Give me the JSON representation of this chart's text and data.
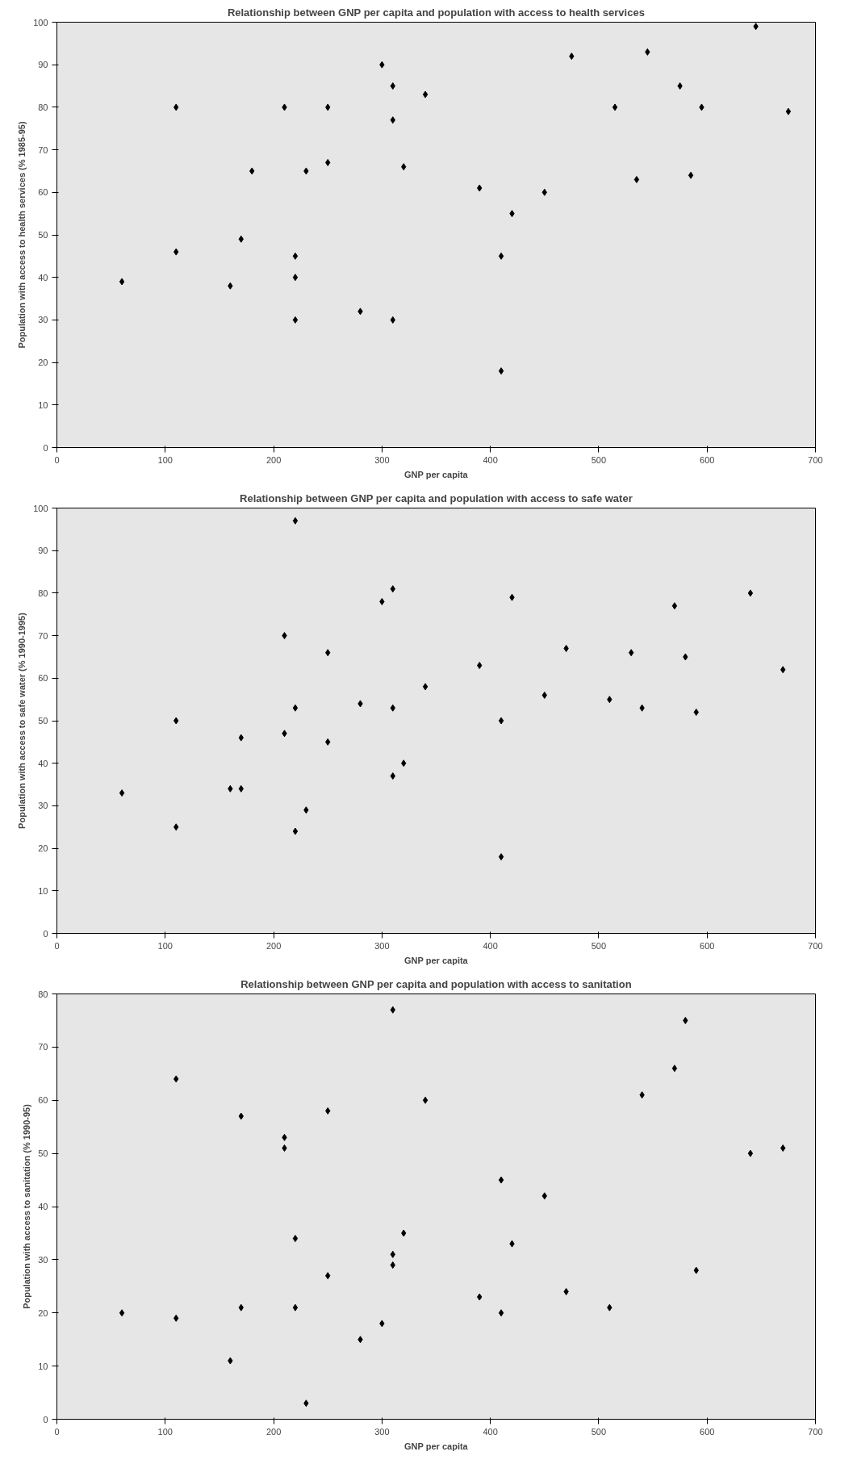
{
  "chart_data": [
    {
      "type": "scatter",
      "title": "Relationship between GNP per capita and population with access to health services",
      "xlabel": "GNP per capita",
      "ylabel": "Population with access to health services (% 1985-95)",
      "xlim": [
        0,
        700
      ],
      "ylim": [
        0,
        100
      ],
      "xticks": [
        0,
        100,
        200,
        300,
        400,
        500,
        600,
        700
      ],
      "yticks": [
        0,
        10,
        20,
        30,
        40,
        50,
        60,
        70,
        80,
        90,
        100
      ],
      "grid": false,
      "marker": "diamond",
      "series": [
        {
          "color": "#000000",
          "x": [
            60,
            110,
            110,
            160,
            170,
            180,
            210,
            220,
            220,
            220,
            230,
            250,
            250,
            280,
            300,
            310,
            310,
            310,
            320,
            340,
            390,
            410,
            410,
            420,
            450,
            475,
            515,
            535,
            545,
            575,
            585,
            595,
            645,
            675
          ],
          "values": [
            39,
            80,
            46,
            38,
            49,
            65,
            80,
            45,
            40,
            30,
            65,
            80,
            67,
            32,
            90,
            85,
            77,
            30,
            66,
            83,
            61,
            45,
            18,
            55,
            60,
            92,
            80,
            63,
            93,
            85,
            64,
            80,
            99,
            79
          ]
        }
      ]
    },
    {
      "type": "scatter",
      "title": "Relationship between GNP per capita and population with access to safe water",
      "xlabel": "GNP per capita",
      "ylabel": "Population with access to safe water (% 1990-1995)",
      "xlim": [
        0,
        700
      ],
      "ylim": [
        0,
        100
      ],
      "xticks": [
        0,
        100,
        200,
        300,
        400,
        500,
        600,
        700
      ],
      "yticks": [
        0,
        10,
        20,
        30,
        40,
        50,
        60,
        70,
        80,
        90,
        100
      ],
      "grid": false,
      "marker": "diamond",
      "series": [
        {
          "color": "#000000",
          "x": [
            60,
            110,
            110,
            160,
            170,
            170,
            210,
            210,
            220,
            220,
            220,
            230,
            250,
            250,
            280,
            300,
            310,
            310,
            310,
            320,
            340,
            390,
            410,
            410,
            420,
            450,
            470,
            510,
            530,
            540,
            570,
            580,
            590,
            640,
            670
          ],
          "values": [
            33,
            50,
            25,
            34,
            34,
            46,
            70,
            47,
            97,
            53,
            24,
            29,
            66,
            45,
            54,
            78,
            81,
            53,
            37,
            40,
            58,
            63,
            50,
            18,
            79,
            56,
            67,
            55,
            66,
            53,
            77,
            65,
            52,
            80,
            62
          ]
        }
      ]
    },
    {
      "type": "scatter",
      "title": "Relationship between GNP per capita and population with access to sanitation",
      "xlabel": "GNP per capita",
      "ylabel": "Population with access to sanitation (% 1990-95)",
      "xlim": [
        0,
        700
      ],
      "ylim": [
        0,
        80
      ],
      "xticks": [
        0,
        100,
        200,
        300,
        400,
        500,
        600,
        700
      ],
      "yticks": [
        0,
        10,
        20,
        30,
        40,
        50,
        60,
        70,
        80
      ],
      "grid": false,
      "marker": "diamond",
      "series": [
        {
          "color": "#000000",
          "x": [
            60,
            110,
            110,
            160,
            170,
            170,
            210,
            210,
            220,
            220,
            230,
            250,
            250,
            280,
            300,
            310,
            310,
            310,
            320,
            340,
            390,
            410,
            410,
            420,
            450,
            470,
            510,
            540,
            570,
            580,
            590,
            640,
            670
          ],
          "values": [
            20,
            64,
            19,
            11,
            57,
            21,
            53,
            51,
            34,
            21,
            3,
            58,
            27,
            15,
            18,
            77,
            31,
            29,
            35,
            60,
            23,
            45,
            20,
            33,
            42,
            24,
            21,
            61,
            66,
            75,
            28,
            50,
            51
          ]
        }
      ]
    }
  ]
}
